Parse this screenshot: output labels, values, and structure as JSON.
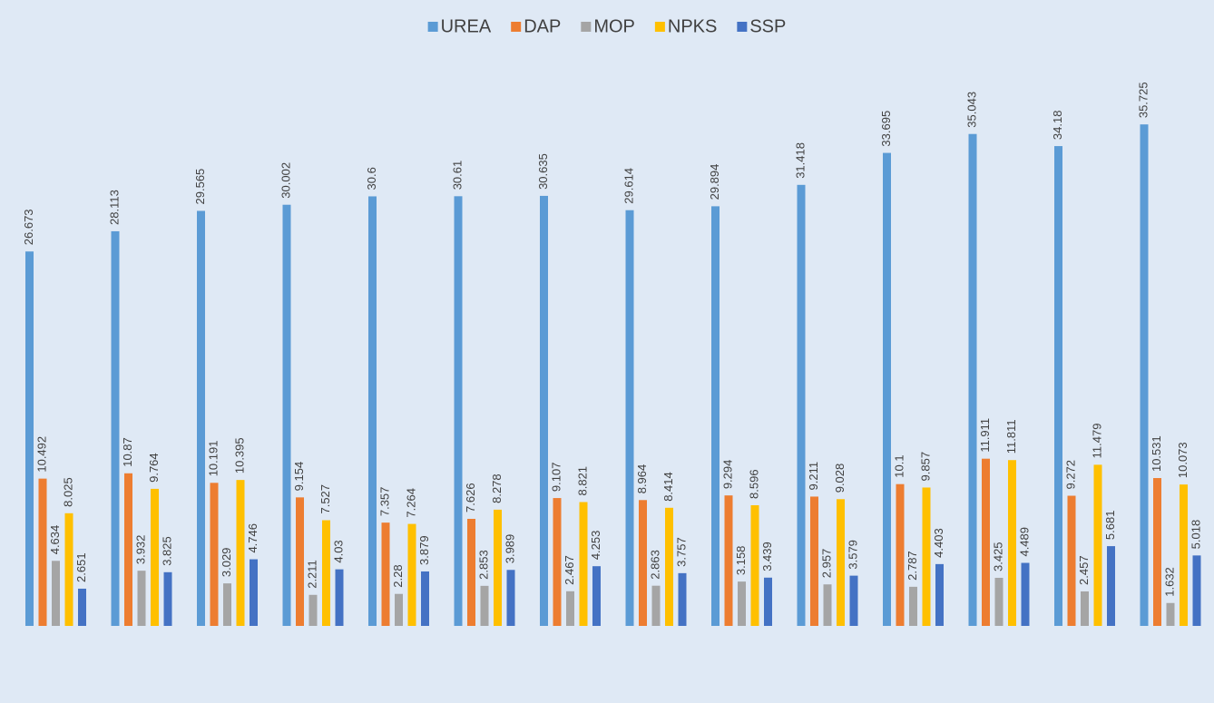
{
  "chart_data": {
    "type": "bar",
    "categories": [
      null,
      null,
      null,
      null,
      null,
      null,
      null,
      null,
      null,
      null,
      null,
      null,
      null,
      null
    ],
    "series": [
      {
        "name": "UREA",
        "color": "#5b9bd5",
        "values": [
          26.673,
          28.113,
          29.565,
          30.002,
          30.6,
          30.61,
          30.635,
          29.614,
          29.894,
          31.418,
          33.695,
          35.043,
          34.18,
          35.725
        ]
      },
      {
        "name": "DAP",
        "color": "#ed7d31",
        "values": [
          10.492,
          10.87,
          10.191,
          9.154,
          7.357,
          7.626,
          9.107,
          8.964,
          9.294,
          9.211,
          10.1,
          11.911,
          9.272,
          10.531
        ]
      },
      {
        "name": "MOP",
        "color": "#a5a5a5",
        "values": [
          4.634,
          3.932,
          3.029,
          2.211,
          2.28,
          2.853,
          2.467,
          2.863,
          3.158,
          2.957,
          2.787,
          3.425,
          2.457,
          1.632
        ]
      },
      {
        "name": "NPKS",
        "color": "#ffc000",
        "values": [
          8.025,
          9.764,
          10.395,
          7.527,
          7.264,
          8.278,
          8.821,
          8.414,
          8.596,
          9.028,
          9.857,
          11.811,
          11.479,
          10.073
        ]
      },
      {
        "name": "SSP",
        "color": "#4472c4",
        "values": [
          2.651,
          3.825,
          4.746,
          4.03,
          3.879,
          3.989,
          4.253,
          3.757,
          3.439,
          3.579,
          4.403,
          4.489,
          5.681,
          5.018
        ]
      }
    ],
    "ylim": [
      0,
      40
    ],
    "legend": "top"
  }
}
